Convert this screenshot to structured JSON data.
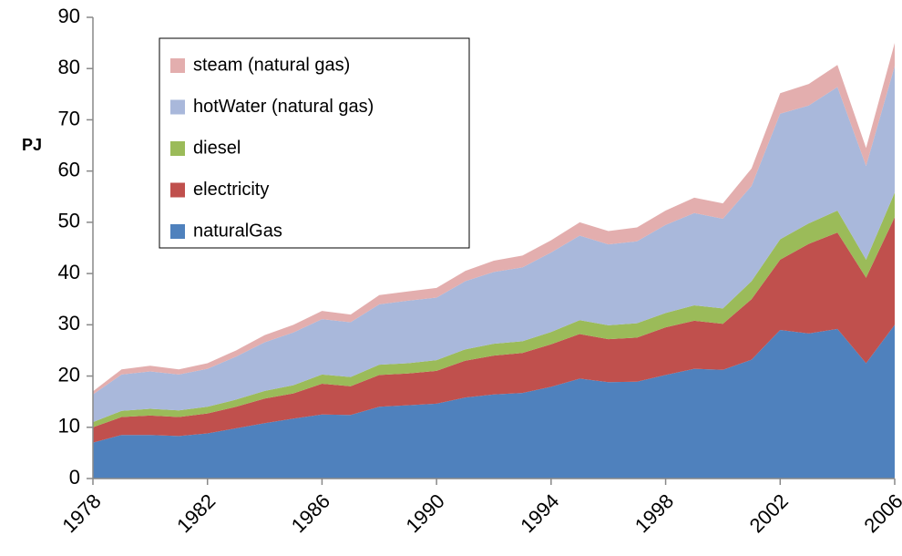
{
  "chart_data": {
    "type": "stacked_area",
    "y_label": "PJ",
    "x": [
      1978,
      1979,
      1980,
      1981,
      1982,
      1983,
      1984,
      1985,
      1986,
      1987,
      1988,
      1989,
      1990,
      1991,
      1992,
      1993,
      1994,
      1995,
      1996,
      1997,
      1998,
      1999,
      2000,
      2001,
      2002,
      2003,
      2004,
      2005,
      2006
    ],
    "series": [
      {
        "name": "naturalGas",
        "color": "#4f81bd",
        "values": [
          7,
          8.5,
          8.5,
          8.3,
          8.8,
          9.8,
          10.8,
          11.7,
          12.5,
          12.4,
          14,
          14.3,
          14.6,
          15.8,
          16.4,
          16.7,
          17.9,
          19.5,
          18.8,
          18.9,
          20.2,
          21.4,
          21.2,
          23.2,
          29,
          28.3,
          29.2,
          22.5,
          30
        ]
      },
      {
        "name": "electricity",
        "color": "#c0504d",
        "values": [
          3,
          3.5,
          3.8,
          3.7,
          3.9,
          4.2,
          4.8,
          4.9,
          6,
          5.6,
          6.2,
          6.2,
          6.4,
          7.2,
          7.6,
          7.8,
          8.3,
          8.7,
          8.4,
          8.6,
          9.3,
          9.4,
          9,
          11.8,
          13.7,
          17.5,
          18.8,
          16.7,
          21
        ]
      },
      {
        "name": "diesel",
        "color": "#9bbb59",
        "values": [
          1,
          1.2,
          1.3,
          1.3,
          1.3,
          1.4,
          1.5,
          1.6,
          1.8,
          1.8,
          2,
          2,
          2.1,
          2.2,
          2.3,
          2.3,
          2.4,
          2.7,
          2.7,
          2.8,
          2.8,
          3,
          3,
          3.5,
          4,
          4,
          4.3,
          3.5,
          4.8
        ]
      },
      {
        "name": "hotWater (natural gas)",
        "color": "#a9b8db",
        "values": [
          5.4,
          7.1,
          7.3,
          7,
          7.4,
          8.4,
          9.5,
          10.3,
          10.8,
          10.7,
          11.8,
          12.2,
          12.2,
          13.3,
          14,
          14.4,
          15.5,
          16.5,
          15.8,
          16,
          17.2,
          18,
          17.5,
          18.6,
          24.5,
          23,
          24.1,
          18.3,
          24.7
        ]
      },
      {
        "name": "steam (natural gas)",
        "color": "#e3aeae",
        "values": [
          0.6,
          1,
          1.1,
          1,
          1.1,
          1.2,
          1.4,
          1.5,
          1.6,
          1.5,
          1.8,
          1.8,
          1.9,
          2,
          2.2,
          2.3,
          2.4,
          2.6,
          2.6,
          2.7,
          2.8,
          3,
          3,
          3.4,
          4,
          4.2,
          4.3,
          3.5,
          4.5
        ]
      }
    ],
    "xlim": [
      1978,
      2006
    ],
    "xticks": [
      1978,
      1982,
      1986,
      1990,
      1994,
      1998,
      2002,
      2006
    ],
    "ylim": [
      0,
      90
    ],
    "yticks": [
      0,
      10,
      20,
      30,
      40,
      50,
      60,
      70,
      80,
      90
    ]
  }
}
